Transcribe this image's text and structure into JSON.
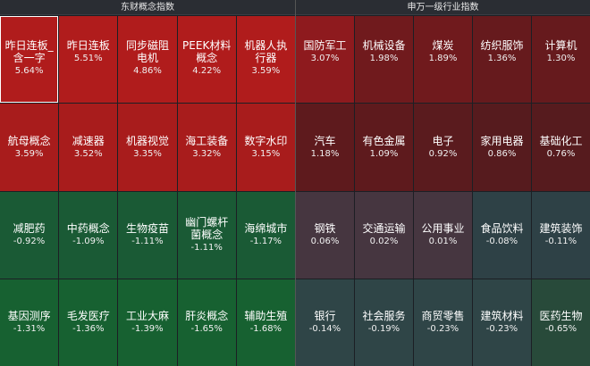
{
  "left_panel": {
    "title": "东财概念指数",
    "tiles": [
      {
        "name": "昨日连板_含一字",
        "pct": "5.64%",
        "color": "#b01c1c",
        "selected": true
      },
      {
        "name": "昨日连板",
        "pct": "5.51%",
        "color": "#b01c1c"
      },
      {
        "name": "同步磁阻电机",
        "pct": "4.86%",
        "color": "#b01c1c"
      },
      {
        "name": "PEEK材料概念",
        "pct": "4.22%",
        "color": "#b01c1c"
      },
      {
        "name": "机器人执行器",
        "pct": "3.59%",
        "color": "#b01c1c"
      },
      {
        "name": "航母概念",
        "pct": "3.59%",
        "color": "#a81c1c"
      },
      {
        "name": "减速器",
        "pct": "3.52%",
        "color": "#a81c1c"
      },
      {
        "name": "机器视觉",
        "pct": "3.35%",
        "color": "#a81c1c"
      },
      {
        "name": "海工装备",
        "pct": "3.32%",
        "color": "#a81c1c"
      },
      {
        "name": "数字水印",
        "pct": "3.15%",
        "color": "#a81c1c"
      },
      {
        "name": "减肥药",
        "pct": "-0.92%",
        "color": "#1a5a35"
      },
      {
        "name": "中药概念",
        "pct": "-1.09%",
        "color": "#1a5a35"
      },
      {
        "name": "生物疫苗",
        "pct": "-1.11%",
        "color": "#1a5a35"
      },
      {
        "name": "幽门螺杆菌概念",
        "pct": "-1.11%",
        "color": "#1a5a35"
      },
      {
        "name": "海绵城市",
        "pct": "-1.17%",
        "color": "#1a5a35"
      },
      {
        "name": "基因测序",
        "pct": "-1.31%",
        "color": "#176131"
      },
      {
        "name": "毛发医疗",
        "pct": "-1.36%",
        "color": "#176131"
      },
      {
        "name": "工业大麻",
        "pct": "-1.39%",
        "color": "#176131"
      },
      {
        "name": "肝炎概念",
        "pct": "-1.65%",
        "color": "#176131"
      },
      {
        "name": "辅助生殖",
        "pct": "-1.68%",
        "color": "#176131"
      }
    ]
  },
  "right_panel": {
    "title": "申万一级行业指数",
    "tiles": [
      {
        "name": "国防军工",
        "pct": "3.07%",
        "color": "#8e1a1e"
      },
      {
        "name": "机械设备",
        "pct": "1.98%",
        "color": "#701a1d"
      },
      {
        "name": "煤炭",
        "pct": "1.89%",
        "color": "#701a1d"
      },
      {
        "name": "纺织服饰",
        "pct": "1.36%",
        "color": "#661a1d"
      },
      {
        "name": "计算机",
        "pct": "1.30%",
        "color": "#661a1d"
      },
      {
        "name": "汽车",
        "pct": "1.18%",
        "color": "#5e1a1d"
      },
      {
        "name": "有色金属",
        "pct": "1.09%",
        "color": "#5e1a1d"
      },
      {
        "name": "电子",
        "pct": "0.92%",
        "color": "#5a1b1e"
      },
      {
        "name": "家用电器",
        "pct": "0.86%",
        "color": "#561b1e"
      },
      {
        "name": "基础化工",
        "pct": "0.76%",
        "color": "#561b1e"
      },
      {
        "name": "钢铁",
        "pct": "0.06%",
        "color": "#463640"
      },
      {
        "name": "交通运输",
        "pct": "0.02%",
        "color": "#463640"
      },
      {
        "name": "公用事业",
        "pct": "0.01%",
        "color": "#463640"
      },
      {
        "name": "食品饮料",
        "pct": "-0.08%",
        "color": "#2e4146"
      },
      {
        "name": "建筑装饰",
        "pct": "-0.11%",
        "color": "#2e4146"
      },
      {
        "name": "银行",
        "pct": "-0.14%",
        "color": "#2f4547"
      },
      {
        "name": "社会服务",
        "pct": "-0.19%",
        "color": "#2f4547"
      },
      {
        "name": "商贸零售",
        "pct": "-0.23%",
        "color": "#2f4547"
      },
      {
        "name": "建筑材料",
        "pct": "-0.23%",
        "color": "#2f4547"
      },
      {
        "name": "医药生物",
        "pct": "-0.65%",
        "color": "#284a3a"
      }
    ]
  }
}
